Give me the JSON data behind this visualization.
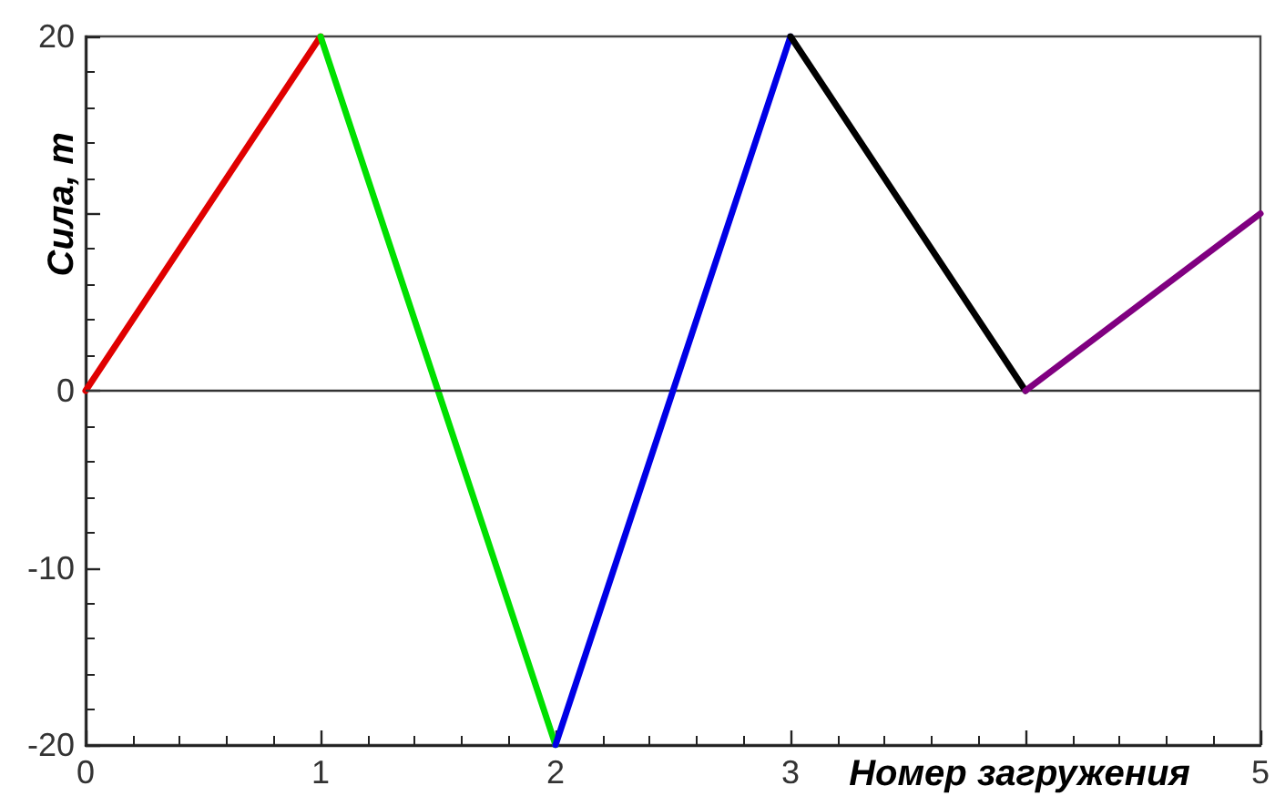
{
  "chart_data": {
    "type": "line",
    "xlabel": "Номер загружения",
    "ylabel": "Сила, т",
    "series": [
      {
        "color": "#e00000",
        "x": [
          0,
          1
        ],
        "values": [
          0,
          20
        ]
      },
      {
        "color": "#00e000",
        "x": [
          1,
          2
        ],
        "values": [
          20,
          -20
        ]
      },
      {
        "color": "#0000e6",
        "x": [
          2,
          3
        ],
        "values": [
          -20,
          20
        ]
      },
      {
        "color": "#000000",
        "x": [
          3,
          4
        ],
        "values": [
          20,
          0
        ]
      },
      {
        "color": "#800080",
        "x": [
          4,
          5
        ],
        "values": [
          0,
          10
        ]
      }
    ],
    "xlim": [
      0,
      5
    ],
    "ylim": [
      -20,
      20
    ],
    "xticks": [
      0,
      1,
      2,
      3,
      {
        "value": 4,
        "label": null
      },
      5
    ],
    "yticks": [
      -20,
      -10,
      0,
      {
        "value": 10,
        "label": null
      },
      20
    ],
    "grid": false,
    "marker": "none",
    "line_style": "solid",
    "ref_lines": [
      {
        "axis": "y",
        "value": 0,
        "color": "#333333"
      }
    ]
  }
}
